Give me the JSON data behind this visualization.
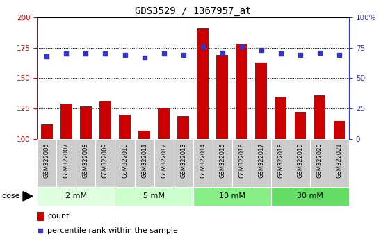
{
  "title": "GDS3529 / 1367957_at",
  "samples": [
    "GSM322006",
    "GSM322007",
    "GSM322008",
    "GSM322009",
    "GSM322010",
    "GSM322011",
    "GSM322012",
    "GSM322013",
    "GSM322014",
    "GSM322015",
    "GSM322016",
    "GSM322017",
    "GSM322018",
    "GSM322019",
    "GSM322020",
    "GSM322021"
  ],
  "counts": [
    112,
    129,
    127,
    131,
    120,
    107,
    125,
    119,
    191,
    169,
    178,
    163,
    135,
    122,
    136,
    115
  ],
  "percentiles": [
    68,
    70,
    70,
    70,
    69,
    67,
    70,
    69,
    76,
    71,
    76,
    73,
    70,
    69,
    71,
    69
  ],
  "dose_groups": [
    {
      "label": "2 mM",
      "start": 0,
      "end": 4,
      "color": "#dfffdf"
    },
    {
      "label": "5 mM",
      "start": 4,
      "end": 8,
      "color": "#ccffcc"
    },
    {
      "label": "10 mM",
      "start": 8,
      "end": 12,
      "color": "#88ee88"
    },
    {
      "label": "30 mM",
      "start": 12,
      "end": 16,
      "color": "#66dd66"
    }
  ],
  "bar_color": "#cc0000",
  "dot_color": "#3333cc",
  "ylim_left": [
    100,
    200
  ],
  "ylim_right": [
    0,
    100
  ],
  "yticks_left": [
    100,
    125,
    150,
    175,
    200
  ],
  "yticks_right": [
    0,
    25,
    50,
    75,
    100
  ],
  "ytick_labels_right": [
    "0",
    "25",
    "50",
    "75",
    "100%"
  ],
  "grid_values": [
    125,
    150,
    175
  ],
  "dose_label": "dose",
  "legend_count": "count",
  "legend_percentile": "percentile rank within the sample",
  "bg_color": "#ffffff",
  "sample_box_color": "#cccccc",
  "title_fontsize": 10,
  "tick_fontsize": 7.5,
  "bar_width": 0.6
}
